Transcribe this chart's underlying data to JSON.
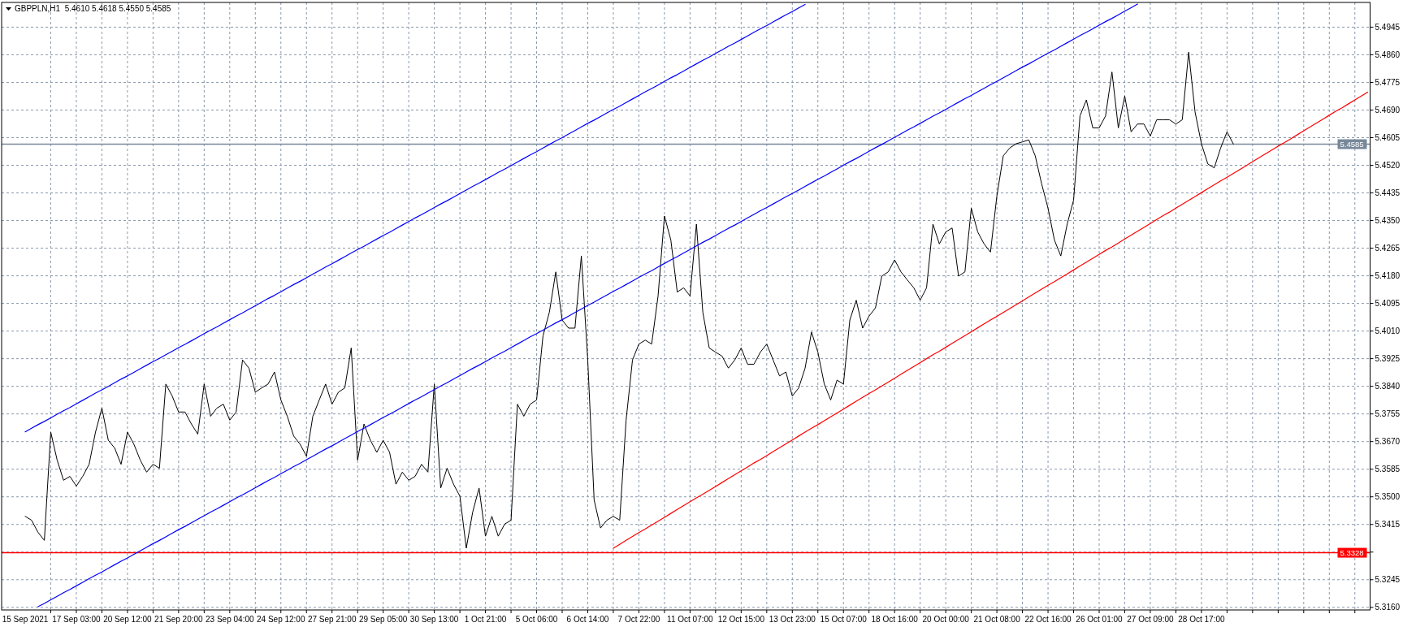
{
  "chart_data": {
    "type": "line",
    "title": "GBPPLN,H1  5.4610 5.4618 5.4550 5.4585",
    "categories": [
      "15 Sep 2021",
      null,
      null,
      null,
      null,
      null,
      null,
      null,
      "17 Sep 03:00",
      null,
      null,
      null,
      null,
      null,
      null,
      null,
      "20 Sep 12:00",
      null,
      null,
      null,
      null,
      null,
      null,
      null,
      "21 Sep 20:00",
      null,
      null,
      null,
      null,
      null,
      null,
      null,
      "23 Sep 04:00",
      null,
      null,
      null,
      null,
      null,
      null,
      null,
      "24 Sep 12:00",
      null,
      null,
      null,
      null,
      null,
      null,
      null,
      "27 Sep 21:00",
      null,
      null,
      null,
      null,
      null,
      null,
      null,
      "29 Sep 05:00",
      null,
      null,
      null,
      null,
      null,
      null,
      null,
      "30 Sep 13:00",
      null,
      null,
      null,
      null,
      null,
      null,
      null,
      "1 Oct 21:00",
      null,
      null,
      null,
      null,
      null,
      null,
      null,
      "5 Oct 06:00",
      null,
      null,
      null,
      null,
      null,
      null,
      null,
      "6 Oct 14:00",
      null,
      null,
      null,
      null,
      null,
      null,
      null,
      "7 Oct 22:00",
      null,
      null,
      null,
      null,
      null,
      null,
      null,
      "11 Oct 07:00",
      null,
      null,
      null,
      null,
      null,
      null,
      null,
      "12 Oct 15:00",
      null,
      null,
      null,
      null,
      null,
      null,
      null,
      "13 Oct 23:00",
      null,
      null,
      null,
      null,
      null,
      null,
      null,
      "15 Oct 07:00",
      null,
      null,
      null,
      null,
      null,
      null,
      null,
      "18 Oct 16:00",
      null,
      null,
      null,
      null,
      null,
      null,
      null,
      "20 Oct 00:00",
      null,
      null,
      null,
      null,
      null,
      null,
      null,
      "21 Oct 08:00",
      null,
      null,
      null,
      null,
      null,
      null,
      null,
      "22 Oct 16:00",
      null,
      null,
      null,
      null,
      null,
      null,
      null,
      "26 Oct 01:00",
      null,
      null,
      null,
      null,
      null,
      null,
      null,
      "27 Oct 09:00",
      null,
      null,
      null,
      null,
      null,
      null,
      null,
      "28 Oct 17:00",
      null,
      null,
      null,
      null,
      null,
      null,
      null,
      null,
      null,
      null,
      null,
      null,
      null,
      null,
      null,
      null,
      null,
      null,
      null,
      null,
      null,
      null,
      null,
      null,
      null,
      null
    ],
    "series": [
      {
        "color": "#000000",
        "values": [
          5.344,
          5.3428,
          5.3391,
          5.3366,
          5.3699,
          5.3613,
          5.3551,
          5.3563,
          5.3533,
          5.3563,
          5.36,
          5.3699,
          5.3773,
          5.3674,
          5.365,
          5.36,
          5.3699,
          5.3662,
          5.3613,
          5.3576,
          5.36,
          5.3588,
          5.3847,
          5.381,
          5.3761,
          5.3761,
          5.3724,
          5.3693,
          5.3847,
          5.3748,
          5.3773,
          5.3785,
          5.3736,
          5.3761,
          5.3921,
          5.3896,
          5.3822,
          5.3835,
          5.3847,
          5.3884,
          5.3798,
          5.3748,
          5.3687,
          5.3662,
          5.3625,
          5.3748,
          5.3798,
          5.3847,
          5.3785,
          5.3822,
          5.3835,
          5.3958,
          5.3613,
          5.3724,
          5.3674,
          5.3637,
          5.3674,
          5.3637,
          5.3539,
          5.3576,
          5.3551,
          5.3563,
          5.36,
          5.3576,
          5.3847,
          5.3527,
          5.3588,
          5.3539,
          5.3502,
          5.3342,
          5.3453,
          5.3527,
          5.3379,
          5.344,
          5.3379,
          5.3416,
          5.3428,
          5.3785,
          5.3748,
          5.3785,
          5.3798,
          5.3995,
          5.4068,
          5.4192,
          5.4044,
          5.4019,
          5.4019,
          5.4241,
          5.3921,
          5.349,
          5.3404,
          5.3428,
          5.344,
          5.3428,
          5.3736,
          5.3921,
          5.397,
          5.3982,
          5.397,
          5.4118,
          5.4364,
          5.429,
          5.413,
          5.4143,
          5.4118,
          5.4339,
          5.4068,
          5.3958,
          5.3945,
          5.3933,
          5.3896,
          5.3921,
          5.3958,
          5.3908,
          5.3908,
          5.3945,
          5.397,
          5.3921,
          5.3872,
          5.3884,
          5.381,
          5.3835,
          5.3896,
          5.4007,
          5.3945,
          5.3847,
          5.3798,
          5.3859,
          5.3847,
          5.4044,
          5.4105,
          5.4019,
          5.4056,
          5.4081,
          5.4179,
          5.4192,
          5.4229,
          5.4192,
          5.4167,
          5.4143,
          5.4105,
          5.4143,
          5.4339,
          5.4278,
          5.4315,
          5.4327,
          5.4179,
          5.4192,
          5.4388,
          5.4315,
          5.4278,
          5.4253,
          5.4426,
          5.4549,
          5.4573,
          5.4586,
          5.4592,
          5.4598,
          5.4549,
          5.4463,
          5.4388,
          5.429,
          5.4241,
          5.4339,
          5.4413,
          5.4672,
          5.4721,
          5.4635,
          5.4635,
          5.4672,
          5.4807,
          5.4635,
          5.4733,
          5.4623,
          5.4647,
          5.4647,
          5.461,
          5.466,
          5.466,
          5.466,
          5.4647,
          5.466,
          5.4868,
          5.4684,
          5.4586,
          5.4524,
          5.4512,
          5.4573,
          5.4623,
          5.4585,
          null,
          null,
          null,
          null,
          null,
          null,
          null,
          null,
          null,
          null,
          null,
          null,
          null,
          null,
          null,
          null,
          null,
          null,
          null,
          null,
          null
        ]
      },
      {
        "type": "line",
        "color": "#0000ff",
        "values": [
          5.37,
          5.3711,
          5.3722,
          5.3732,
          5.3743,
          5.3754,
          5.3765,
          5.3775,
          5.3786,
          5.3797,
          5.3808,
          5.3819,
          5.3829,
          5.384,
          5.3851,
          5.3862,
          5.3872,
          5.3883,
          5.3894,
          5.3905,
          5.3916,
          5.3926,
          5.3937,
          5.3948,
          5.3959,
          5.3969,
          5.398,
          5.3991,
          5.4002,
          5.4013,
          5.4023,
          5.4034,
          5.4045,
          5.4056,
          5.4066,
          5.4077,
          5.4088,
          5.4099,
          5.411,
          5.412,
          5.4131,
          5.4142,
          5.4153,
          5.4163,
          5.4174,
          5.4185,
          5.4196,
          5.4207,
          5.4217,
          5.4228,
          5.4239,
          5.425,
          5.4261,
          5.4271,
          5.4282,
          5.4293,
          5.4304,
          5.4314,
          5.4325,
          5.4336,
          5.4347,
          5.4358,
          5.4368,
          5.4379,
          5.439,
          5.4401,
          5.4411,
          5.4422,
          5.4433,
          5.4444,
          5.4455,
          5.4465,
          5.4476,
          5.4487,
          5.4498,
          5.4508,
          5.4519,
          5.453,
          5.4541,
          5.4552,
          5.4562,
          5.4573,
          5.4584,
          5.4595,
          5.4605,
          5.4616,
          5.4627,
          5.4638,
          5.4649,
          5.4659,
          5.467,
          5.4681,
          5.4692,
          5.4702,
          5.4713,
          5.4724,
          5.4735,
          5.4746,
          5.4756,
          5.4767,
          5.4778,
          5.4789,
          5.4799,
          5.481,
          5.4821,
          5.4832,
          5.4843,
          5.4853,
          5.4864,
          5.4875,
          5.4886,
          5.4896,
          5.4907,
          5.4918,
          5.4929,
          5.494,
          5.495,
          5.4961,
          5.4972,
          5.4983,
          5.4993,
          5.5004,
          5.5015,
          null,
          null,
          null,
          null,
          null,
          null,
          null,
          null,
          null,
          null,
          null,
          null,
          null,
          null,
          null,
          null,
          null,
          null,
          null,
          null,
          null,
          null,
          null,
          null,
          null,
          null,
          null,
          null,
          null,
          null,
          null,
          null,
          null,
          null,
          null,
          null,
          null,
          null,
          null,
          null,
          null,
          null,
          null,
          null,
          null,
          null,
          null,
          null,
          null,
          null,
          null,
          null,
          null,
          null,
          null,
          null,
          null,
          null,
          null,
          null,
          null,
          null,
          null,
          null,
          null,
          null,
          null,
          null,
          null,
          null,
          null,
          null,
          null,
          null,
          null,
          null,
          null,
          null,
          null,
          null,
          null,
          null,
          null,
          null,
          null,
          null,
          null,
          null
        ]
      },
      {
        "type": "line",
        "color": "#0000ff",
        "values": [
          null,
          null,
          5.3162,
          5.3172,
          5.3183,
          5.3194,
          5.3205,
          5.3215,
          5.3226,
          5.3237,
          5.3248,
          5.3259,
          5.3269,
          5.328,
          5.3291,
          5.3302,
          5.3312,
          5.3323,
          5.3334,
          5.3345,
          5.3356,
          5.3366,
          5.3377,
          5.3388,
          5.3399,
          5.3409,
          5.342,
          5.3431,
          5.3442,
          5.3453,
          5.3463,
          5.3474,
          5.3485,
          5.3496,
          5.3506,
          5.3517,
          5.3528,
          5.3539,
          5.355,
          5.356,
          5.3571,
          5.3582,
          5.3593,
          5.3603,
          5.3614,
          5.3625,
          5.3636,
          5.3647,
          5.3657,
          5.3668,
          5.3679,
          5.369,
          5.3701,
          5.3711,
          5.3722,
          5.3733,
          5.3744,
          5.3754,
          5.3765,
          5.3776,
          5.3787,
          5.3798,
          5.3808,
          5.3819,
          5.383,
          5.3841,
          5.3851,
          5.3862,
          5.3873,
          5.3884,
          5.3895,
          5.3905,
          5.3916,
          5.3927,
          5.3938,
          5.3948,
          5.3959,
          5.397,
          5.3981,
          5.3992,
          5.4002,
          5.4013,
          5.4024,
          5.4035,
          5.4045,
          5.4056,
          5.4067,
          5.4078,
          5.4089,
          5.4099,
          5.411,
          5.4121,
          5.4132,
          5.4142,
          5.4153,
          5.4164,
          5.4175,
          5.4186,
          5.4196,
          5.4207,
          5.4218,
          5.4229,
          5.4239,
          5.425,
          5.4261,
          5.4272,
          5.4283,
          5.4293,
          5.4304,
          5.4315,
          5.4326,
          5.4336,
          5.4347,
          5.4358,
          5.4369,
          5.438,
          5.439,
          5.4401,
          5.4412,
          5.4423,
          5.4433,
          5.4444,
          5.4455,
          5.4466,
          5.4477,
          5.4487,
          5.4498,
          5.4509,
          5.452,
          5.4531,
          5.4541,
          5.4552,
          5.4563,
          5.4574,
          5.4584,
          5.4595,
          5.4606,
          5.4617,
          5.4628,
          5.4638,
          5.4649,
          5.466,
          5.4671,
          5.4681,
          5.4692,
          5.4703,
          5.4714,
          5.4725,
          5.4735,
          5.4746,
          5.4757,
          5.4768,
          5.4778,
          5.4789,
          5.48,
          5.4811,
          5.4822,
          5.4832,
          5.4843,
          5.4854,
          5.4865,
          5.4875,
          5.4886,
          5.4897,
          5.4908,
          5.4919,
          5.4929,
          5.494,
          5.4951,
          5.4962,
          5.4972,
          5.4983,
          5.4994,
          5.5005,
          5.5016,
          null,
          null,
          null,
          null,
          null,
          null,
          null,
          null,
          null,
          null,
          null,
          null,
          null,
          null,
          null,
          null,
          null,
          null,
          null,
          null,
          null,
          null,
          null,
          null,
          null,
          null,
          null,
          null,
          null,
          null,
          null,
          null,
          null,
          null,
          null,
          null
        ]
      },
      {
        "type": "line",
        "color": "#ff0000",
        "values": [
          null,
          null,
          null,
          null,
          null,
          null,
          null,
          null,
          null,
          null,
          null,
          null,
          null,
          null,
          null,
          null,
          null,
          null,
          null,
          null,
          null,
          null,
          null,
          null,
          null,
          null,
          null,
          null,
          null,
          null,
          null,
          null,
          null,
          null,
          null,
          null,
          null,
          null,
          null,
          null,
          null,
          null,
          null,
          null,
          null,
          null,
          null,
          null,
          null,
          null,
          null,
          null,
          null,
          null,
          null,
          null,
          null,
          null,
          null,
          null,
          null,
          null,
          null,
          null,
          null,
          null,
          null,
          null,
          null,
          null,
          null,
          null,
          null,
          null,
          null,
          null,
          null,
          null,
          null,
          null,
          null,
          null,
          null,
          null,
          null,
          null,
          null,
          null,
          null,
          null,
          null,
          null,
          5.3342,
          5.3354,
          5.3366,
          5.3378,
          5.339,
          5.3401,
          5.3413,
          5.3425,
          5.3437,
          5.3449,
          5.3461,
          5.3473,
          5.3485,
          5.3497,
          5.3508,
          5.352,
          5.3532,
          5.3544,
          5.3556,
          5.3568,
          5.358,
          5.3592,
          5.3604,
          5.3615,
          5.3627,
          5.3639,
          5.3651,
          5.3663,
          5.3675,
          5.3687,
          5.3699,
          5.3711,
          5.3722,
          5.3734,
          5.3746,
          5.3758,
          5.377,
          5.3782,
          5.3794,
          5.3806,
          5.3818,
          5.3829,
          5.3841,
          5.3853,
          5.3865,
          5.3877,
          5.3889,
          5.3901,
          5.3913,
          5.3925,
          5.3937,
          5.3948,
          5.396,
          5.3972,
          5.3984,
          5.3996,
          5.4008,
          5.402,
          5.4032,
          5.4044,
          5.4055,
          5.4067,
          5.4079,
          5.4091,
          5.4103,
          5.4115,
          5.4127,
          5.4139,
          5.4151,
          5.4162,
          5.4174,
          5.4186,
          5.4198,
          5.421,
          5.4222,
          5.4234,
          5.4246,
          5.4258,
          5.4269,
          5.4281,
          5.4293,
          5.4305,
          5.4317,
          5.4329,
          5.4341,
          5.4353,
          5.4365,
          5.4376,
          5.4388,
          5.44,
          5.4412,
          5.4424,
          5.4436,
          5.4448,
          5.446,
          5.4472,
          5.4483,
          5.4495,
          5.4507,
          5.4519,
          5.4531,
          5.4543,
          5.4555,
          5.4567,
          5.4579,
          5.459,
          5.4602,
          5.4614,
          5.4626,
          5.4638,
          5.465,
          5.4662,
          5.4674,
          5.4686,
          5.4697,
          5.4709,
          5.4721,
          5.4733,
          5.4745
        ]
      }
    ],
    "ylim": [
      5.3152,
      5.5021
    ],
    "yticks": [
      {
        "value": 5.316,
        "label": "5.3160"
      },
      {
        "value": 5.3245,
        "label": "5.3245"
      },
      {
        "value": 5.333,
        "label": null
      },
      {
        "value": 5.3415,
        "label": "5.3415"
      },
      {
        "value": 5.35,
        "label": "5.3500"
      },
      {
        "value": 5.3585,
        "label": "5.3585"
      },
      {
        "value": 5.367,
        "label": "5.3670"
      },
      {
        "value": 5.3755,
        "label": "5.3755"
      },
      {
        "value": 5.384,
        "label": "5.3840"
      },
      {
        "value": 5.3925,
        "label": "5.3925"
      },
      {
        "value": 5.401,
        "label": "5.4010"
      },
      {
        "value": 5.4095,
        "label": "5.4095"
      },
      {
        "value": 5.418,
        "label": "5.4180"
      },
      {
        "value": 5.4265,
        "label": "5.4265"
      },
      {
        "value": 5.435,
        "label": "5.4350"
      },
      {
        "value": 5.4435,
        "label": "5.4435"
      },
      {
        "value": 5.452,
        "label": "5.4520"
      },
      {
        "value": 5.4605,
        "label": "5.4605"
      },
      {
        "value": 5.469,
        "label": "5.4690"
      },
      {
        "value": 5.4775,
        "label": "5.4775"
      },
      {
        "value": 5.486,
        "label": "5.4860"
      },
      {
        "value": 5.4945,
        "label": "5.4945"
      }
    ],
    "ref_lines": [
      {
        "axis": "y",
        "value": 5.3328,
        "label": "5.3328",
        "color": "#ff0000"
      },
      {
        "axis": "y",
        "value": 5.4585,
        "label": "5.4585",
        "color": "#778899"
      }
    ],
    "grid": true
  }
}
